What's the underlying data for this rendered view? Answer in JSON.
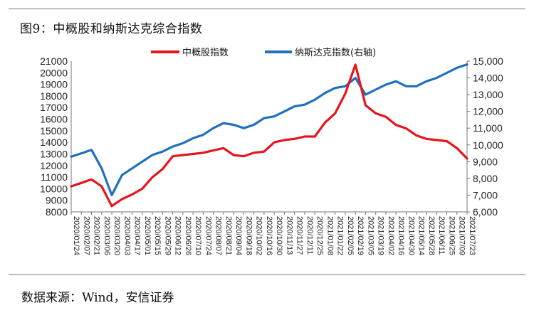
{
  "figure": {
    "title": "图9：中概股和纳斯达克综合指数",
    "source": "数据来源：Wind，安信证券"
  },
  "colors": {
    "china": "#e8141b",
    "nasdaq": "#1f6fc0"
  },
  "chart_data": {
    "type": "line",
    "legend_position": "top",
    "x_labels": [
      "2020/01/24",
      "2020/02/07",
      "2020/02/21",
      "2020/03/06",
      "2020/03/20",
      "2020/04/03",
      "2020/04/17",
      "2020/05/01",
      "2020/05/15",
      "2020/05/29",
      "2020/06/12",
      "2020/06/26",
      "2020/07/10",
      "2020/07/24",
      "2020/08/07",
      "2020/08/21",
      "2020/09/04",
      "2020/09/18",
      "2020/10/02",
      "2020/10/16",
      "2020/10/30",
      "2020/11/13",
      "2020/11/27",
      "2020/12/11",
      "2020/12/25",
      "2021/01/08",
      "2021/01/22",
      "2021/02/05",
      "2021/02/19",
      "2021/03/05",
      "2021/03/19",
      "2021/04/02",
      "2021/04/16",
      "2021/04/30",
      "2021/05/14",
      "2021/05/28",
      "2021/06/11",
      "2021/06/25",
      "2021/07/09",
      "2021/07/23"
    ],
    "left_axis": {
      "min": 8000,
      "max": 21000,
      "ticks": [
        "8000",
        "9000",
        "10000",
        "11000",
        "12000",
        "13000",
        "14000",
        "15000",
        "16000",
        "17000",
        "18000",
        "19000",
        "20000",
        "21000"
      ]
    },
    "right_axis": {
      "min": 6000,
      "max": 15000,
      "ticks": [
        "6,000",
        "7,000",
        "8,000",
        "9,000",
        "10,000",
        "11,000",
        "12,000",
        "13,000",
        "14,000",
        "15,000"
      ]
    },
    "series": [
      {
        "name": "中概股指数",
        "axis": "left",
        "values": [
          10200,
          10500,
          10800,
          10200,
          8500,
          9100,
          9500,
          10000,
          11000,
          11700,
          12800,
          12900,
          13000,
          13100,
          13300,
          13500,
          12900,
          12800,
          13100,
          13200,
          14000,
          14200,
          14300,
          14500,
          14500,
          15700,
          16500,
          18200,
          20700,
          17200,
          16500,
          16200,
          15500,
          15200,
          14600,
          14300,
          14200,
          14100,
          13500,
          12600
        ]
      },
      {
        "name": "纳斯达克指数(右轴)",
        "axis": "right",
        "values": [
          9300,
          9500,
          9700,
          8600,
          7000,
          8200,
          8600,
          9000,
          9400,
          9600,
          9900,
          10100,
          10400,
          10600,
          11000,
          11300,
          11200,
          11000,
          11200,
          11600,
          11700,
          12000,
          12300,
          12400,
          12700,
          13100,
          13400,
          13500,
          14000,
          13000,
          13300,
          13600,
          13800,
          13500,
          13500,
          13800,
          14000,
          14300,
          14600,
          14800
        ]
      }
    ]
  }
}
